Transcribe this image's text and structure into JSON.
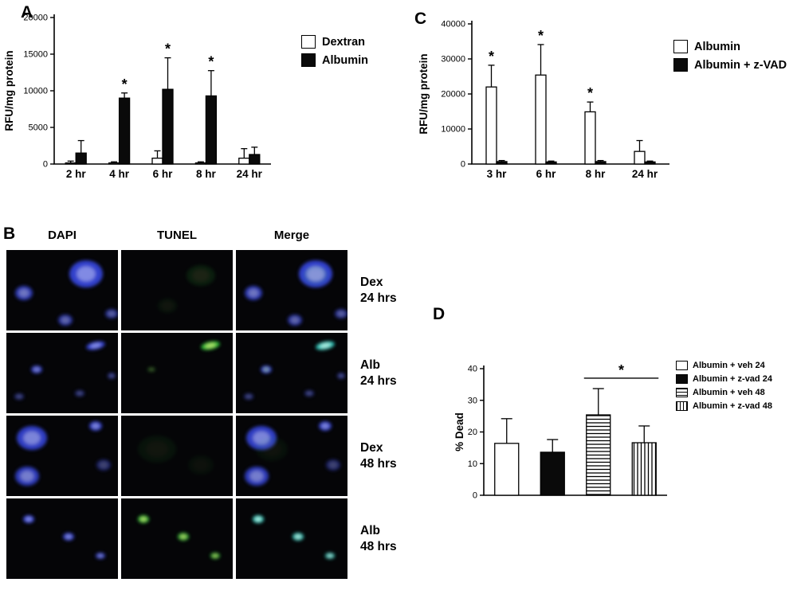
{
  "panels": {
    "A": {
      "label": "A",
      "legend": [
        {
          "label": "Dextran",
          "swatch": "white"
        },
        {
          "label": "Albumin",
          "swatch": "black"
        }
      ]
    },
    "B": {
      "label": "B",
      "col_headers": [
        "DAPI",
        "TUNEL",
        "Merge"
      ],
      "row_labels": [
        [
          "Dex",
          "24 hrs"
        ],
        [
          "Alb",
          "24 hrs"
        ],
        [
          "Dex",
          "48 hrs"
        ],
        [
          "Alb",
          "48 hrs"
        ]
      ]
    },
    "C": {
      "label": "C",
      "legend": [
        {
          "label": "Albumin",
          "swatch": "white"
        },
        {
          "label": "Albumin + z-VAD",
          "swatch": "black"
        }
      ]
    },
    "D": {
      "label": "D",
      "legend": [
        {
          "label": "Albumin + veh 24",
          "swatch": "white"
        },
        {
          "label": "Albumin + z-vad 24",
          "swatch": "black"
        },
        {
          "label": "Albumin + veh 48",
          "swatch": "hstripe"
        },
        {
          "label": "Albumin + z-vad 48",
          "swatch": "vstripe"
        }
      ]
    }
  },
  "chart_data": [
    {
      "panel": "A",
      "type": "bar",
      "title": "",
      "ylabel": "RFU/mg protein",
      "ylim": [
        0,
        20000
      ],
      "yticks": [
        0,
        5000,
        10000,
        15000,
        20000
      ],
      "categories": [
        "2 hr",
        "4 hr",
        "6 hr",
        "8 hr",
        "24 hr"
      ],
      "legend_position": "right",
      "grid": false,
      "series": [
        {
          "name": "Dextran",
          "fill": "white",
          "values": [
            150,
            150,
            800,
            150,
            800
          ],
          "errors": [
            250,
            150,
            1000,
            150,
            1300
          ],
          "asterisks": [
            false,
            false,
            false,
            false,
            false
          ]
        },
        {
          "name": "Albumin",
          "fill": "black",
          "values": [
            1500,
            9000,
            10200,
            9300,
            1300
          ],
          "errors": [
            1700,
            700,
            4300,
            3450,
            1000
          ],
          "asterisks": [
            false,
            true,
            true,
            true,
            false
          ]
        }
      ]
    },
    {
      "panel": "C",
      "type": "bar",
      "title": "",
      "ylabel": "RFU/mg protein",
      "ylim": [
        0,
        40000
      ],
      "yticks": [
        0,
        10000,
        20000,
        30000,
        40000
      ],
      "categories": [
        "3 hr",
        "6 hr",
        "8 hr",
        "24 hr"
      ],
      "legend_position": "right",
      "grid": false,
      "series": [
        {
          "name": "Albumin",
          "fill": "white",
          "values": [
            22000,
            25400,
            14900,
            3600
          ],
          "errors": [
            6200,
            8700,
            2800,
            3100
          ],
          "asterisks": [
            true,
            true,
            true,
            false
          ]
        },
        {
          "name": "Albumin + z-VAD",
          "fill": "black",
          "values": [
            700,
            600,
            700,
            600
          ],
          "errors": [
            300,
            250,
            300,
            250
          ],
          "asterisks": [
            false,
            false,
            false,
            false
          ]
        }
      ]
    },
    {
      "panel": "D",
      "type": "bar",
      "title": "",
      "ylabel": "% Dead",
      "ylim": [
        0,
        40
      ],
      "yticks": [
        0,
        10,
        20,
        30,
        40
      ],
      "categories": [
        "Albumin + veh 24",
        "Albumin + z-vad 24",
        "Albumin + veh 48",
        "Albumin + z-vad 48"
      ],
      "hide_category_labels": true,
      "legend_position": "right",
      "grid": false,
      "series": [
        {
          "name": "% Dead",
          "values": [
            16.4,
            13.6,
            25.4,
            16.6
          ],
          "errors": [
            7.8,
            4.0,
            8.3,
            5.3
          ],
          "fills": [
            "white",
            "black",
            "hstripe",
            "vstripe"
          ]
        }
      ],
      "significance": {
        "from": 2,
        "to": 3,
        "y": 37,
        "label": "*"
      }
    }
  ],
  "microscopy": {
    "rows": [
      {
        "dapi": [
          [
            100,
            30,
            21,
            17,
            "blue",
            0.95,
            0
          ],
          [
            22,
            54,
            11,
            9,
            "blue",
            0.8,
            0
          ],
          [
            74,
            88,
            9,
            7,
            "blue",
            0.7,
            0
          ],
          [
            132,
            80,
            8,
            6,
            "blue",
            0.65,
            0
          ]
        ],
        "tunel": [
          [
            100,
            32,
            18,
            13,
            "green",
            0.13,
            0
          ],
          [
            58,
            70,
            12,
            9,
            "green",
            0.07,
            0
          ]
        ],
        "merge": [
          [
            100,
            30,
            21,
            17,
            "blue",
            0.95,
            0
          ],
          [
            22,
            54,
            11,
            9,
            "blue",
            0.8,
            0
          ],
          [
            74,
            88,
            9,
            7,
            "blue",
            0.7,
            0
          ],
          [
            132,
            80,
            8,
            6,
            "blue",
            0.65,
            0
          ],
          [
            100,
            32,
            16,
            12,
            "green",
            0.1,
            0
          ]
        ]
      },
      {
        "dapi": [
          [
            112,
            16,
            12,
            5,
            "blue",
            0.95,
            -12
          ],
          [
            38,
            46,
            7,
            5,
            "blue",
            0.85,
            0
          ],
          [
            16,
            80,
            6,
            4,
            "blue",
            0.5,
            0
          ],
          [
            92,
            76,
            6,
            4,
            "blue",
            0.5,
            0
          ],
          [
            132,
            54,
            5,
            4,
            "blue",
            0.55,
            0
          ]
        ],
        "tunel": [
          [
            112,
            16,
            12,
            5,
            "green",
            0.95,
            -12
          ],
          [
            38,
            46,
            5,
            3,
            "green",
            0.35,
            0
          ]
        ],
        "merge": [
          [
            112,
            16,
            12,
            5,
            "cyan",
            0.95,
            -12
          ],
          [
            38,
            46,
            7,
            5,
            "blue",
            0.85,
            0
          ],
          [
            16,
            80,
            6,
            4,
            "blue",
            0.5,
            0
          ],
          [
            92,
            76,
            6,
            4,
            "blue",
            0.5,
            0
          ],
          [
            132,
            54,
            5,
            4,
            "blue",
            0.55,
            0
          ],
          [
            38,
            46,
            4,
            3,
            "green",
            0.3,
            0
          ]
        ]
      },
      {
        "dapi": [
          [
            32,
            28,
            19,
            15,
            "blue",
            0.9,
            0
          ],
          [
            26,
            76,
            15,
            12,
            "blue",
            0.85,
            0
          ],
          [
            112,
            13,
            8,
            6,
            "blue",
            0.9,
            0
          ],
          [
            122,
            62,
            9,
            7,
            "blue",
            0.45,
            0
          ]
        ],
        "tunel": [
          [
            45,
            42,
            24,
            17,
            "green",
            0.07,
            0
          ],
          [
            100,
            62,
            16,
            12,
            "green",
            0.05,
            0
          ]
        ],
        "merge": [
          [
            32,
            28,
            19,
            15,
            "blue",
            0.9,
            0
          ],
          [
            26,
            76,
            15,
            12,
            "blue",
            0.85,
            0
          ],
          [
            112,
            13,
            8,
            6,
            "blue",
            0.9,
            0
          ],
          [
            122,
            62,
            9,
            7,
            "blue",
            0.45,
            0
          ],
          [
            45,
            42,
            20,
            15,
            "green",
            0.06,
            0
          ]
        ]
      },
      {
        "dapi": [
          [
            28,
            26,
            7,
            5,
            "blue",
            0.95,
            0
          ],
          [
            78,
            48,
            7,
            5,
            "blue",
            0.9,
            0
          ],
          [
            118,
            72,
            6,
            4,
            "blue",
            0.85,
            0
          ]
        ],
        "tunel": [
          [
            28,
            26,
            7,
            5,
            "green",
            0.9,
            0
          ],
          [
            78,
            48,
            7,
            5,
            "green",
            0.85,
            0
          ],
          [
            118,
            72,
            6,
            4,
            "green",
            0.8,
            0
          ]
        ],
        "merge": [
          [
            28,
            26,
            7,
            5,
            "cyan",
            0.95,
            0
          ],
          [
            78,
            48,
            7,
            5,
            "cyan",
            0.9,
            0
          ],
          [
            118,
            72,
            6,
            4,
            "cyan",
            0.85,
            0
          ]
        ]
      }
    ]
  }
}
